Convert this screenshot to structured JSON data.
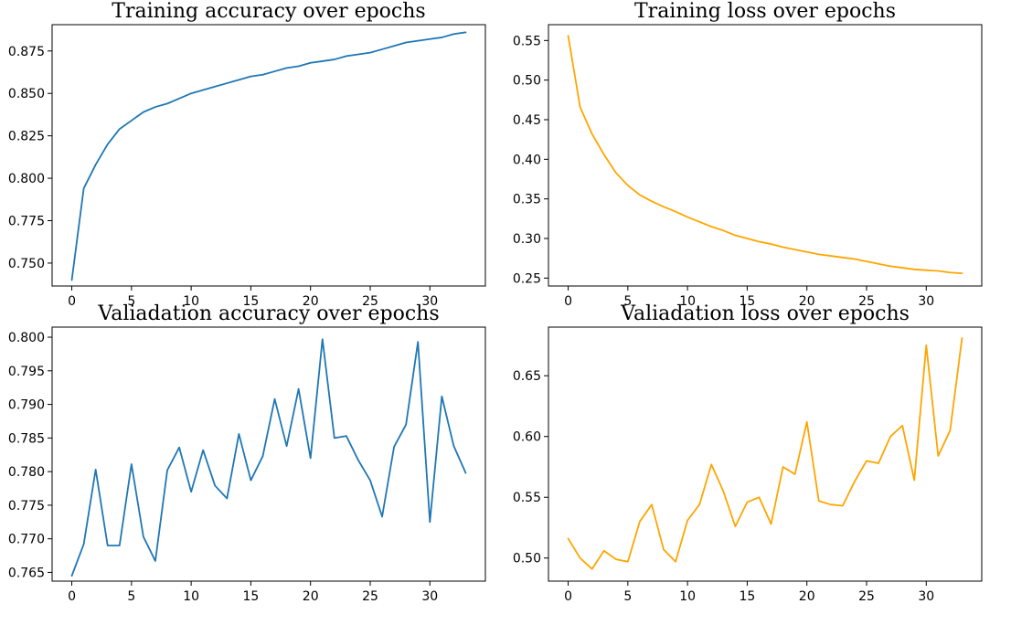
{
  "chart_data": [
    {
      "type": "line",
      "title": "Training accuracy over epochs",
      "xlabel": "",
      "ylabel": "",
      "color": "#1f77b4",
      "xlim": [
        -1.65,
        34.65
      ],
      "ylim": [
        0.7365,
        0.8905
      ],
      "xticks": [
        0,
        5,
        10,
        15,
        20,
        25,
        30
      ],
      "yticks": [
        0.75,
        0.775,
        0.8,
        0.825,
        0.85,
        0.875
      ],
      "ytick_labels": [
        "0.750",
        "0.775",
        "0.800",
        "0.825",
        "0.850",
        "0.875"
      ],
      "x": [
        0,
        1,
        2,
        3,
        4,
        5,
        6,
        7,
        8,
        9,
        10,
        11,
        12,
        13,
        14,
        15,
        16,
        17,
        18,
        19,
        20,
        21,
        22,
        23,
        24,
        25,
        26,
        27,
        28,
        29,
        30,
        31,
        32,
        33
      ],
      "y": [
        0.74,
        0.794,
        0.808,
        0.82,
        0.829,
        0.834,
        0.839,
        0.842,
        0.844,
        0.847,
        0.85,
        0.852,
        0.854,
        0.856,
        0.858,
        0.86,
        0.861,
        0.863,
        0.865,
        0.866,
        0.868,
        0.869,
        0.87,
        0.872,
        0.873,
        0.874,
        0.876,
        0.878,
        0.88,
        0.881,
        0.882,
        0.883,
        0.885,
        0.886
      ]
    },
    {
      "type": "line",
      "title": "Training loss over epochs",
      "xlabel": "",
      "ylabel": "",
      "color": "#ffa500",
      "xlim": [
        -1.65,
        34.65
      ],
      "ylim": [
        0.24,
        0.57
      ],
      "xticks": [
        0,
        5,
        10,
        15,
        20,
        25,
        30
      ],
      "yticks": [
        0.25,
        0.3,
        0.35,
        0.4,
        0.45,
        0.5,
        0.55
      ],
      "ytick_labels": [
        "0.25",
        "0.30",
        "0.35",
        "0.40",
        "0.45",
        "0.50",
        "0.55"
      ],
      "x": [
        0,
        1,
        2,
        3,
        4,
        5,
        6,
        7,
        8,
        9,
        10,
        11,
        12,
        13,
        14,
        15,
        16,
        17,
        18,
        19,
        20,
        21,
        22,
        23,
        24,
        25,
        26,
        27,
        28,
        29,
        30,
        31,
        32,
        33
      ],
      "y": [
        0.556,
        0.466,
        0.432,
        0.406,
        0.383,
        0.367,
        0.355,
        0.347,
        0.34,
        0.334,
        0.327,
        0.321,
        0.315,
        0.31,
        0.304,
        0.3,
        0.296,
        0.293,
        0.289,
        0.286,
        0.283,
        0.28,
        0.278,
        0.276,
        0.274,
        0.271,
        0.268,
        0.265,
        0.263,
        0.261,
        0.26,
        0.259,
        0.257,
        0.256
      ]
    },
    {
      "type": "line",
      "title": "Valiadation accuracy over epochs",
      "xlabel": "",
      "ylabel": "",
      "color": "#1f77b4",
      "xlim": [
        -1.65,
        34.65
      ],
      "ylim": [
        0.7637,
        0.8015
      ],
      "xticks": [
        0,
        5,
        10,
        15,
        20,
        25,
        30
      ],
      "yticks": [
        0.765,
        0.77,
        0.775,
        0.78,
        0.785,
        0.79,
        0.795,
        0.8
      ],
      "ytick_labels": [
        "0.765",
        "0.770",
        "0.775",
        "0.780",
        "0.785",
        "0.790",
        "0.795",
        "0.800"
      ],
      "x": [
        0,
        1,
        2,
        3,
        4,
        5,
        6,
        7,
        8,
        9,
        10,
        11,
        12,
        13,
        14,
        15,
        16,
        17,
        18,
        19,
        20,
        21,
        22,
        23,
        24,
        25,
        26,
        27,
        28,
        29,
        30,
        31,
        32,
        33
      ],
      "y": [
        0.7645,
        0.7692,
        0.7803,
        0.769,
        0.769,
        0.7811,
        0.7703,
        0.7667,
        0.7802,
        0.7836,
        0.777,
        0.7832,
        0.7779,
        0.776,
        0.7856,
        0.7787,
        0.7823,
        0.7908,
        0.7838,
        0.7923,
        0.782,
        0.7997,
        0.785,
        0.7853,
        0.7817,
        0.7787,
        0.7733,
        0.7837,
        0.787,
        0.7993,
        0.7725,
        0.7912,
        0.7838,
        0.7798
      ]
    },
    {
      "type": "line",
      "title": "Valiadation loss over epochs",
      "xlabel": "",
      "ylabel": "",
      "color": "#ffa500",
      "xlim": [
        -1.65,
        34.65
      ],
      "ylim": [
        0.481,
        0.69
      ],
      "xticks": [
        0,
        5,
        10,
        15,
        20,
        25,
        30
      ],
      "yticks": [
        0.5,
        0.55,
        0.6,
        0.65
      ],
      "ytick_labels": [
        "0.50",
        "0.55",
        "0.60",
        "0.65"
      ],
      "x": [
        0,
        1,
        2,
        3,
        4,
        5,
        6,
        7,
        8,
        9,
        10,
        11,
        12,
        13,
        14,
        15,
        16,
        17,
        18,
        19,
        20,
        21,
        22,
        23,
        24,
        25,
        26,
        27,
        28,
        29,
        30,
        31,
        32,
        33
      ],
      "y": [
        0.516,
        0.5,
        0.491,
        0.506,
        0.499,
        0.497,
        0.53,
        0.544,
        0.507,
        0.497,
        0.531,
        0.544,
        0.577,
        0.555,
        0.526,
        0.546,
        0.55,
        0.528,
        0.575,
        0.569,
        0.612,
        0.547,
        0.544,
        0.543,
        0.563,
        0.58,
        0.578,
        0.6,
        0.609,
        0.564,
        0.675,
        0.584,
        0.605,
        0.681
      ]
    }
  ]
}
